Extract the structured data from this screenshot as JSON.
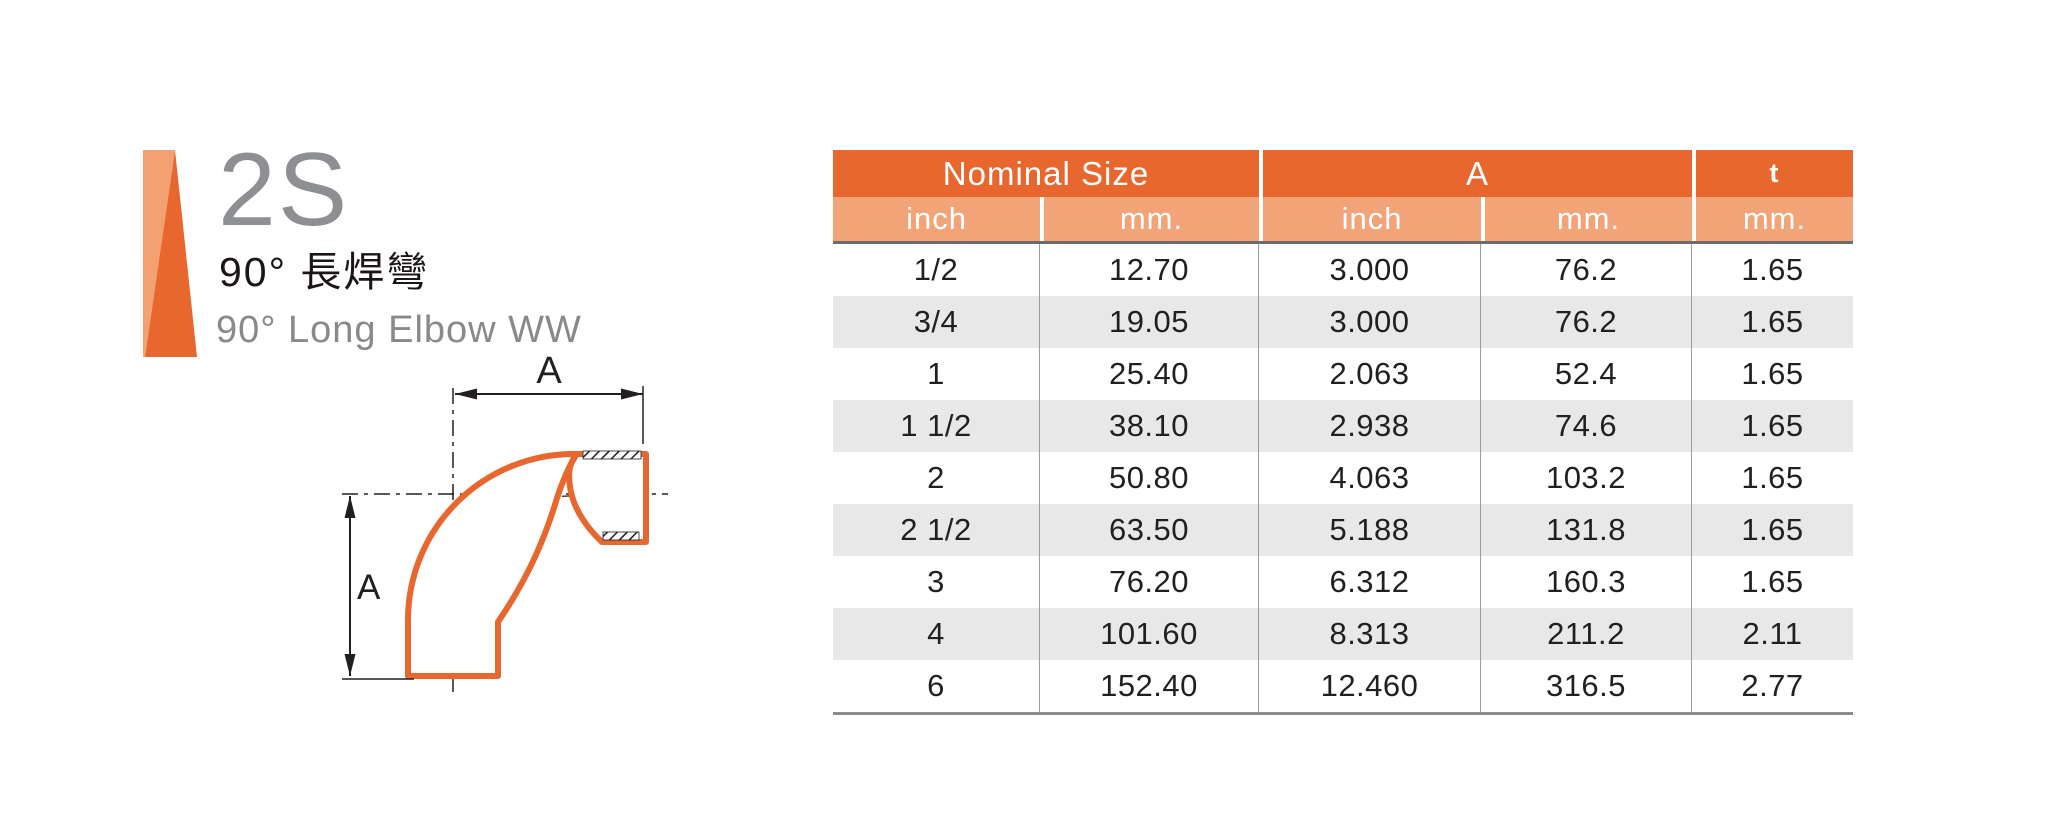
{
  "product": {
    "code": "2S",
    "title_zh": "90° 長焊彎",
    "title_en": "90° Long Elbow WW"
  },
  "diagram": {
    "dim_top_label": "A",
    "dim_left_label": "A",
    "outline_color": "#E8672E"
  },
  "brand": {
    "bar_light_color": "#F4A172",
    "bar_dark_color": "#E8672E"
  },
  "table": {
    "header_groups": [
      {
        "label": "Nominal Size",
        "span": 2
      },
      {
        "label": "A",
        "span": 2
      },
      {
        "label": "t",
        "span": 1
      }
    ],
    "subheaders": [
      "inch",
      "mm.",
      "inch",
      "mm.",
      "mm."
    ],
    "rows": [
      [
        "1/2",
        "12.70",
        "3.000",
        "76.2",
        "1.65"
      ],
      [
        "3/4",
        "19.05",
        "3.000",
        "76.2",
        "1.65"
      ],
      [
        "1",
        "25.40",
        "2.063",
        "52.4",
        "1.65"
      ],
      [
        "1 1/2",
        "38.10",
        "2.938",
        "74.6",
        "1.65"
      ],
      [
        "2",
        "50.80",
        "4.063",
        "103.2",
        "1.65"
      ],
      [
        "2 1/2",
        "63.50",
        "5.188",
        "131.8",
        "1.65"
      ],
      [
        "3",
        "76.20",
        "6.312",
        "160.3",
        "1.65"
      ],
      [
        "4",
        "101.60",
        "8.313",
        "211.2",
        "2.11"
      ],
      [
        "6",
        "152.40",
        "12.460",
        "316.5",
        "2.77"
      ]
    ],
    "colors": {
      "header_dark": "#E8672E",
      "header_light": "#F2A478",
      "row_alt": "#E8E8E8",
      "text": "#231F20"
    }
  }
}
